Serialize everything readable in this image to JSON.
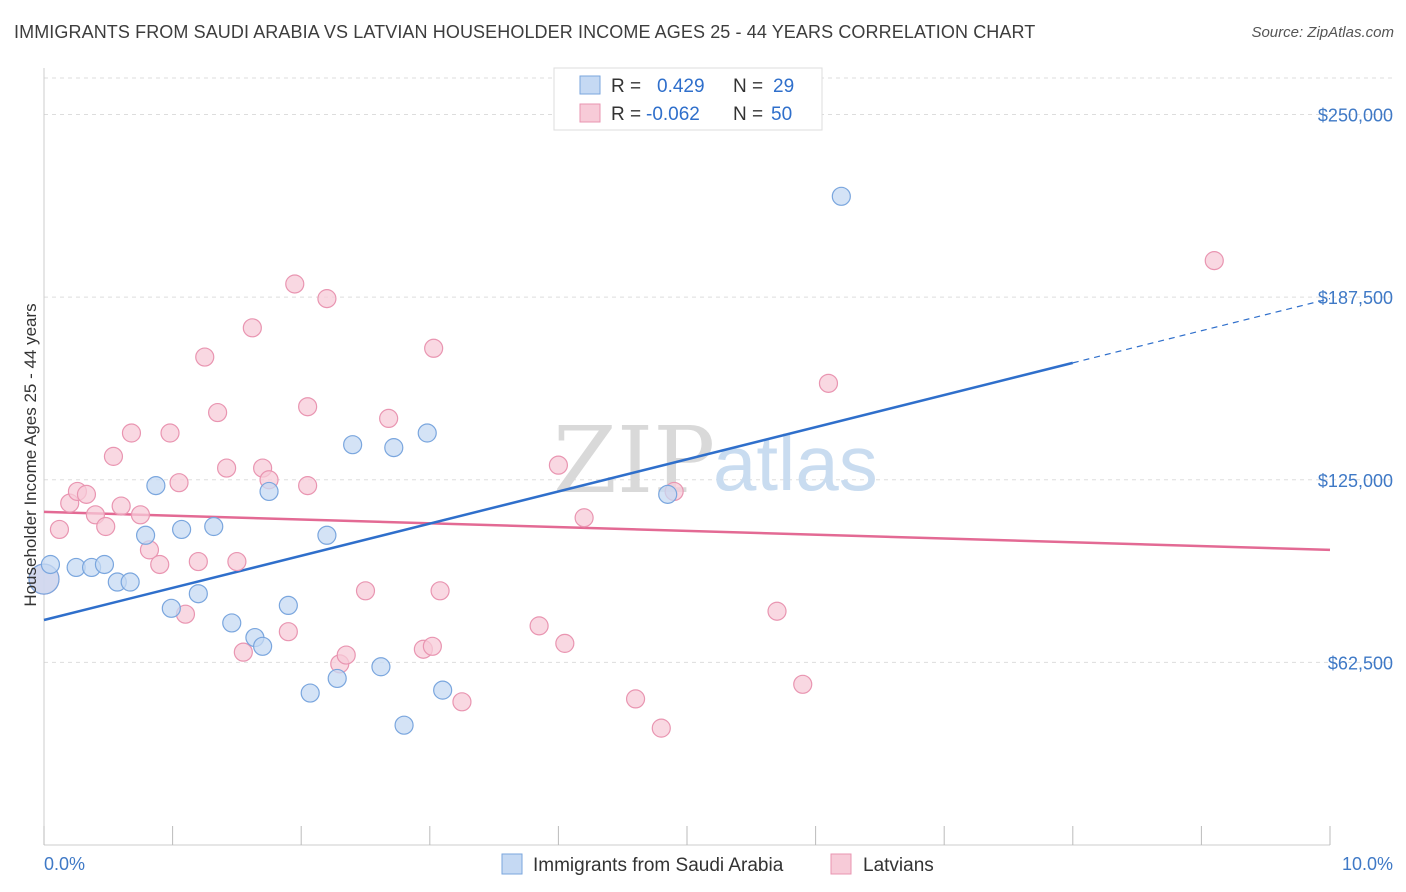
{
  "header": {
    "title": "IMMIGRANTS FROM SAUDI ARABIA VS LATVIAN HOUSEHOLDER INCOME AGES 25 - 44 YEARS CORRELATION CHART",
    "source": "Source: ZipAtlas.com"
  },
  "watermark": {
    "zip": "ZIP",
    "atlas": "atlas"
  },
  "legend": {
    "rows": [
      {
        "r_label": "R =",
        "r_value": "0.429",
        "n_label": "N =",
        "n_value": "29"
      },
      {
        "r_label": "R =",
        "r_value": "-0.062",
        "n_label": "N =",
        "n_value": "50"
      }
    ]
  },
  "colors": {
    "blue_fill": "#c5d9f3",
    "blue_stroke": "#7aa6de",
    "blue_line": "#2f6fcb",
    "pink_fill": "#f7cbd8",
    "pink_stroke": "#e995b1",
    "pink_line": "#e36a94",
    "grid": "#dddddd",
    "axis_label": "#3f79c6"
  },
  "chart_data": {
    "type": "scatter",
    "title": "IMMIGRANTS FROM SAUDI ARABIA VS LATVIAN HOUSEHOLDER INCOME AGES 25 - 44 YEARS CORRELATION CHART",
    "xlabel": "",
    "ylabel": "Householder Income Ages 25 - 44 years",
    "xlim": [
      0,
      10
    ],
    "ylim": [
      0,
      262500
    ],
    "x_tick_labels": [
      "0.0%",
      "10.0%"
    ],
    "y_ticks": [
      62500,
      125000,
      187500,
      250000
    ],
    "y_tick_labels": [
      "$62,500",
      "$125,000",
      "$187,500",
      "$250,000"
    ],
    "grid": "horizontal dashed",
    "legend_position": "top-center",
    "series": [
      {
        "name": "Immigrants from Saudi Arabia",
        "color": "#7aa6de",
        "points": [
          [
            0.0,
            91000
          ],
          [
            0.05,
            96000
          ],
          [
            0.25,
            95000
          ],
          [
            0.37,
            95000
          ],
          [
            0.47,
            96000
          ],
          [
            0.57,
            90000
          ],
          [
            0.67,
            90000
          ],
          [
            0.79,
            106000
          ],
          [
            0.87,
            123000
          ],
          [
            0.99,
            81000
          ],
          [
            1.07,
            108000
          ],
          [
            1.2,
            86000
          ],
          [
            1.32,
            109000
          ],
          [
            1.46,
            76000
          ],
          [
            1.64,
            71000
          ],
          [
            1.7,
            68000
          ],
          [
            1.75,
            121000
          ],
          [
            1.9,
            82000
          ],
          [
            2.07,
            52000
          ],
          [
            2.2,
            106000
          ],
          [
            2.28,
            57000
          ],
          [
            2.4,
            137000
          ],
          [
            2.62,
            61000
          ],
          [
            2.72,
            136000
          ],
          [
            2.8,
            41000
          ],
          [
            2.98,
            141000
          ],
          [
            3.1,
            53000
          ],
          [
            4.85,
            120000
          ],
          [
            6.2,
            222000
          ]
        ],
        "trend": {
          "x": [
            0,
            8.0
          ],
          "y": [
            77000,
            165000
          ],
          "dashed_extension": {
            "x": [
              8.0,
              10.0
            ],
            "y": [
              165000,
              187000
            ]
          }
        }
      },
      {
        "name": "Latvians",
        "color": "#e995b1",
        "points": [
          [
            0.12,
            108000
          ],
          [
            0.2,
            117000
          ],
          [
            0.26,
            121000
          ],
          [
            0.33,
            120000
          ],
          [
            0.4,
            113000
          ],
          [
            0.48,
            109000
          ],
          [
            0.54,
            133000
          ],
          [
            0.6,
            116000
          ],
          [
            0.68,
            141000
          ],
          [
            0.75,
            113000
          ],
          [
            0.82,
            101000
          ],
          [
            0.9,
            96000
          ],
          [
            0.98,
            141000
          ],
          [
            1.05,
            124000
          ],
          [
            1.1,
            79000
          ],
          [
            1.2,
            97000
          ],
          [
            1.25,
            167000
          ],
          [
            1.35,
            148000
          ],
          [
            1.42,
            129000
          ],
          [
            1.5,
            97000
          ],
          [
            1.55,
            66000
          ],
          [
            1.62,
            177000
          ],
          [
            1.7,
            129000
          ],
          [
            1.75,
            125000
          ],
          [
            1.9,
            73000
          ],
          [
            1.95,
            192000
          ],
          [
            2.05,
            150000
          ],
          [
            2.05,
            123000
          ],
          [
            2.2,
            187000
          ],
          [
            2.3,
            62000
          ],
          [
            2.35,
            65000
          ],
          [
            2.5,
            87000
          ],
          [
            2.68,
            146000
          ],
          [
            2.95,
            67000
          ],
          [
            3.02,
            68000
          ],
          [
            3.03,
            170000
          ],
          [
            3.08,
            87000
          ],
          [
            3.25,
            49000
          ],
          [
            3.85,
            75000
          ],
          [
            4.0,
            130000
          ],
          [
            4.05,
            69000
          ],
          [
            4.2,
            112000
          ],
          [
            4.6,
            50000
          ],
          [
            4.8,
            40000
          ],
          [
            4.9,
            121000
          ],
          [
            5.7,
            80000
          ],
          [
            5.9,
            55000
          ],
          [
            6.1,
            158000
          ],
          [
            9.1,
            200000
          ],
          [
            0.0,
            91000
          ]
        ],
        "trend": {
          "x": [
            0,
            10.0
          ],
          "y": [
            114000,
            101000
          ]
        }
      }
    ]
  },
  "bottom_legend": {
    "items": [
      {
        "label": "Immigrants from Saudi Arabia"
      },
      {
        "label": "Latvians"
      }
    ]
  }
}
